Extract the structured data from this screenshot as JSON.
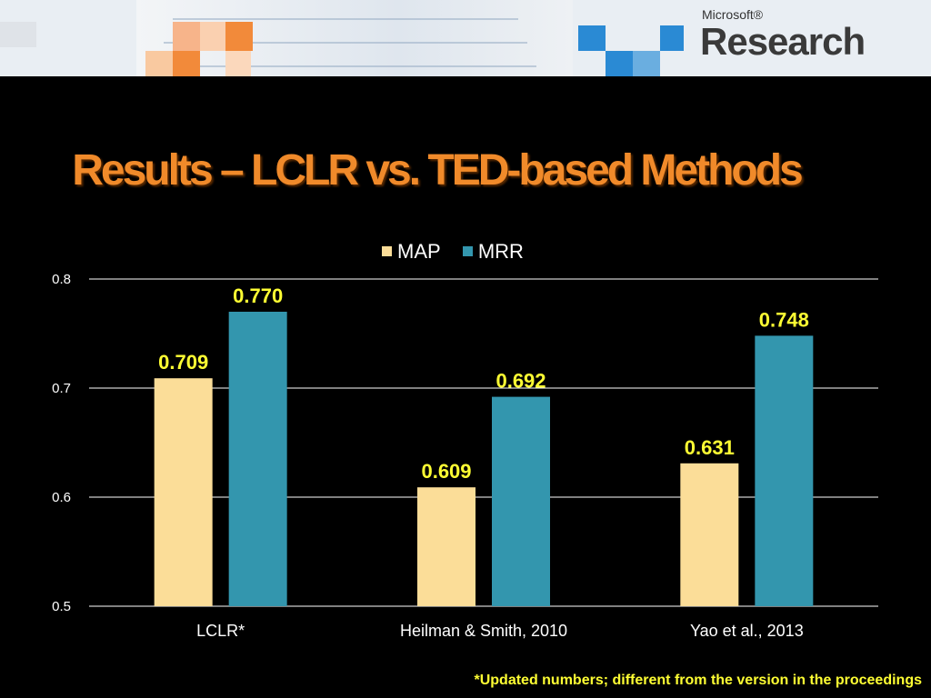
{
  "slide": {
    "title": "Results – LCLR vs. TED-based Methods",
    "footnote": "*Updated numbers; different from the version in the proceedings"
  },
  "logo": {
    "small": "Microsoft®",
    "big": "Research"
  },
  "colors": {
    "map": "#fbdd98",
    "mrr": "#3396ae",
    "label": "#ffff33",
    "title": "#f08a2a"
  },
  "chart_data": {
    "type": "bar",
    "categories": [
      "LCLR*",
      "Heilman & Smith, 2010",
      "Yao et al., 2013"
    ],
    "series": [
      {
        "name": "MAP",
        "values": [
          0.709,
          0.609,
          0.631
        ],
        "labels": [
          "0.709",
          "0.609",
          "0.631"
        ]
      },
      {
        "name": "MRR",
        "values": [
          0.77,
          0.692,
          0.748
        ],
        "labels": [
          "0.770",
          "0.692",
          "0.748"
        ]
      }
    ],
    "yticks": [
      "0.5",
      "0.6",
      "0.7",
      "0.8"
    ],
    "ylim": [
      0.5,
      0.8
    ],
    "grid": true,
    "legend": "top-center"
  }
}
